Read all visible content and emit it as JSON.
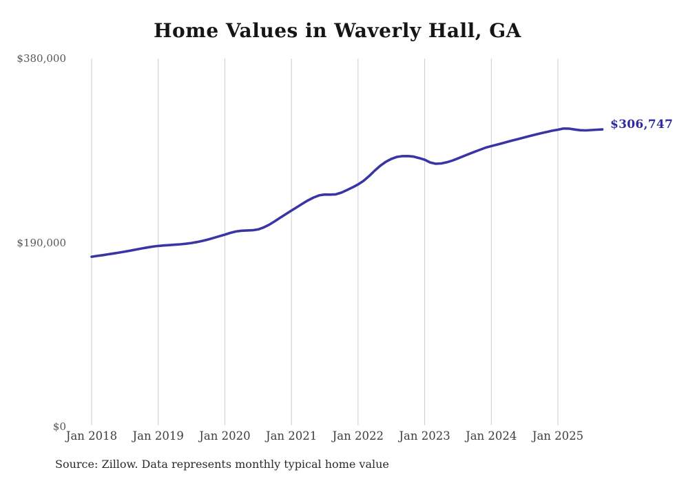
{
  "title": "Home Values in Waverly Hall, GA",
  "source_note": "Source: Zillow. Data represents monthly typical home value",
  "colors": {
    "line": "#3a34a4",
    "end_label": "#2e2a9e",
    "grid": "#cccccc",
    "title": "#151515",
    "y_axis_text": "#565656",
    "x_axis_text": "#3d3d3d"
  },
  "chart_data": {
    "type": "line",
    "title": "Home Values in Waverly Hall, GA",
    "xlabel": "",
    "ylabel": "",
    "ylim": [
      0,
      380000
    ],
    "grid": "vertical-only",
    "legend": "none",
    "end_label": "$306,747",
    "latest_value": 306747,
    "y_ticks": [
      {
        "label": "$380,000",
        "value": 380000
      },
      {
        "label": "$190,000",
        "value": 190000
      },
      {
        "label": "$0",
        "value": 0
      }
    ],
    "x_tick_labels": [
      "Jan 2018",
      "Jan 2019",
      "Jan 2020",
      "Jan 2021",
      "Jan 2022",
      "Jan 2023",
      "Jan 2024",
      "Jan 2025"
    ],
    "x": [
      "2018-01",
      "2018-02",
      "2018-03",
      "2018-04",
      "2018-05",
      "2018-06",
      "2018-07",
      "2018-08",
      "2018-09",
      "2018-10",
      "2018-11",
      "2018-12",
      "2019-01",
      "2019-02",
      "2019-03",
      "2019-04",
      "2019-05",
      "2019-06",
      "2019-07",
      "2019-08",
      "2019-09",
      "2019-10",
      "2019-11",
      "2019-12",
      "2020-01",
      "2020-02",
      "2020-03",
      "2020-04",
      "2020-05",
      "2020-06",
      "2020-07",
      "2020-08",
      "2020-09",
      "2020-10",
      "2020-11",
      "2020-12",
      "2021-01",
      "2021-02",
      "2021-03",
      "2021-04",
      "2021-05",
      "2021-06",
      "2021-07",
      "2021-08",
      "2021-09",
      "2021-10",
      "2021-11",
      "2021-12",
      "2022-01",
      "2022-02",
      "2022-03",
      "2022-04",
      "2022-05",
      "2022-06",
      "2022-07",
      "2022-08",
      "2022-09",
      "2022-10",
      "2022-11",
      "2022-12",
      "2023-01",
      "2023-02",
      "2023-03",
      "2023-04",
      "2023-05",
      "2023-06",
      "2023-07",
      "2023-08",
      "2023-09",
      "2023-10",
      "2023-11",
      "2023-12",
      "2024-01",
      "2024-02",
      "2024-03",
      "2024-04",
      "2024-05",
      "2024-06",
      "2024-07",
      "2024-08",
      "2024-09",
      "2024-10",
      "2024-11",
      "2024-12",
      "2025-01",
      "2025-02",
      "2025-03",
      "2025-04",
      "2025-05",
      "2025-06",
      "2025-07",
      "2025-08",
      "2025-09"
    ],
    "values": [
      175400,
      176200,
      177000,
      177900,
      178800,
      179700,
      180700,
      181700,
      182800,
      183900,
      184900,
      185800,
      186500,
      187000,
      187400,
      187800,
      188200,
      188800,
      189600,
      190600,
      191800,
      193200,
      194800,
      196500,
      198200,
      200000,
      201400,
      202200,
      202500,
      202700,
      203600,
      205600,
      208500,
      212000,
      215700,
      219400,
      223000,
      226600,
      230200,
      233600,
      236500,
      238700,
      239600,
      239500,
      239800,
      241600,
      244200,
      247000,
      250000,
      253800,
      258700,
      264200,
      269300,
      273400,
      276400,
      278400,
      279200,
      279300,
      278700,
      277200,
      275500,
      272700,
      271300,
      271700,
      272900,
      274700,
      276900,
      279200,
      281500,
      283700,
      285900,
      288000,
      289600,
      291100,
      292600,
      294100,
      295600,
      297100,
      298600,
      300100,
      301500,
      302900,
      304200,
      305500,
      306500,
      307700,
      307600,
      306700,
      306000,
      305800,
      306100,
      306500,
      306747
    ]
  }
}
